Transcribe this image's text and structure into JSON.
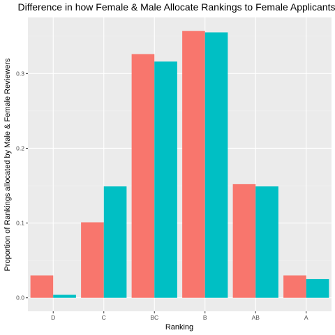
{
  "chart_data": {
    "type": "bar",
    "title": "Difference in how Female & Male Allocate Rankings to Female Applicants",
    "xlabel": "Ranking",
    "ylabel": "Proportion of Rankings allocated by Male & Female Reviewers",
    "categories": [
      "D",
      "C",
      "BC",
      "B",
      "AB",
      "A"
    ],
    "series": [
      {
        "values": [
          0.03,
          0.101,
          0.326,
          0.357,
          0.152,
          0.03
        ]
      },
      {
        "values": [
          0.004,
          0.149,
          0.316,
          0.355,
          0.149,
          0.025
        ]
      }
    ],
    "series_colors": [
      "#F8766D",
      "#00BFC4"
    ],
    "ylim": [
      -0.018,
      0.375
    ],
    "yticks": [
      0.0,
      0.1,
      0.2,
      0.3
    ],
    "ytick_labels": [
      "0.0",
      "0.1",
      "0.2",
      "0.3"
    ],
    "grid": true,
    "legend": "none",
    "panel_color": "#EBEBEB"
  }
}
